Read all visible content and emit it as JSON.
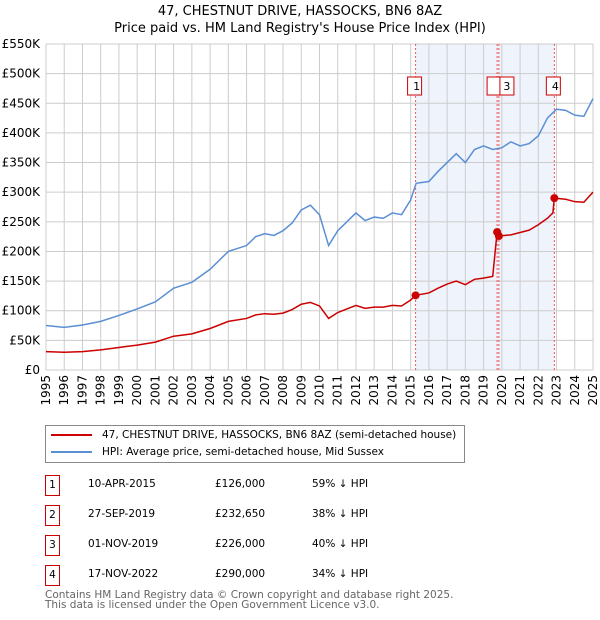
{
  "title": "47, CHESTNUT DRIVE, HASSOCKS, BN6 8AZ",
  "subtitle": "Price paid vs. HM Land Registry's House Price Index (HPI)",
  "chart_data": {
    "type": "line",
    "title": "47, CHESTNUT DRIVE, HASSOCKS, BN6 8AZ — Price paid vs. HM Land Registry's House Price Index (HPI)",
    "xlim": [
      1995,
      2025
    ],
    "ylim": [
      0,
      550000
    ],
    "x_ticks": [
      "1995",
      "1996",
      "1997",
      "1998",
      "1999",
      "2000",
      "2001",
      "2002",
      "2003",
      "2004",
      "2005",
      "2006",
      "2007",
      "2008",
      "2009",
      "2010",
      "2011",
      "2012",
      "2013",
      "2014",
      "2015",
      "2016",
      "2017",
      "2018",
      "2019",
      "2020",
      "2021",
      "2022",
      "2023",
      "2024",
      "2025"
    ],
    "y_ticks": [
      {
        "v": 0,
        "l": "£0"
      },
      {
        "v": 50000,
        "l": "£50K"
      },
      {
        "v": 100000,
        "l": "£100K"
      },
      {
        "v": 150000,
        "l": "£150K"
      },
      {
        "v": 200000,
        "l": "£200K"
      },
      {
        "v": 250000,
        "l": "£250K"
      },
      {
        "v": 300000,
        "l": "£300K"
      },
      {
        "v": 350000,
        "l": "£350K"
      },
      {
        "v": 400000,
        "l": "£400K"
      },
      {
        "v": 450000,
        "l": "£450K"
      },
      {
        "v": 500000,
        "l": "£500K"
      },
      {
        "v": 550000,
        "l": "£550K"
      }
    ],
    "grid": true,
    "shaded_range": [
      2015.27,
      2022.88
    ],
    "series": [
      {
        "name": "HPI: Average price, semi-detached house, Mid Sussex",
        "color": "#5b8fd4",
        "x": [
          1995,
          1996,
          1997,
          1998,
          1999,
          2000,
          2001,
          2002,
          2003,
          2004,
          2005,
          2006,
          2006.5,
          2007,
          2007.5,
          2008,
          2008.5,
          2009,
          2009.5,
          2010,
          2010.5,
          2011,
          2011.5,
          2012,
          2012.5,
          2013,
          2013.5,
          2014,
          2014.5,
          2015,
          2015.3,
          2016,
          2016.5,
          2017,
          2017.5,
          2018,
          2018.5,
          2019,
          2019.5,
          2020,
          2020.5,
          2021,
          2021.5,
          2022,
          2022.5,
          2023,
          2023.5,
          2024,
          2024.5,
          2025
        ],
        "y": [
          75000,
          72000,
          76000,
          82000,
          92000,
          103000,
          115000,
          138000,
          148000,
          170000,
          200000,
          210000,
          225000,
          230000,
          227000,
          235000,
          248000,
          270000,
          278000,
          262000,
          210000,
          235000,
          250000,
          265000,
          252000,
          258000,
          256000,
          265000,
          262000,
          287000,
          315000,
          318000,
          335000,
          350000,
          365000,
          350000,
          372000,
          378000,
          372000,
          375000,
          385000,
          378000,
          382000,
          395000,
          425000,
          440000,
          438000,
          430000,
          428000,
          458000
        ]
      },
      {
        "name": "47, CHESTNUT DRIVE, HASSOCKS, BN6 8AZ (semi-detached house)",
        "color": "#cc0000",
        "x": [
          1995,
          1996,
          1997,
          1998,
          1999,
          2000,
          2001,
          2002,
          2003,
          2004,
          2005,
          2006,
          2006.5,
          2007,
          2007.5,
          2008,
          2008.5,
          2009,
          2009.5,
          2010,
          2010.5,
          2011,
          2011.5,
          2012,
          2012.5,
          2013,
          2013.5,
          2014,
          2014.5,
          2015,
          2015.27,
          2016,
          2016.5,
          2017,
          2017.5,
          2018,
          2018.5,
          2019,
          2019.5,
          2019.74,
          2019.84,
          2020.5,
          2021,
          2021.5,
          2022,
          2022.5,
          2022.8,
          2022.88,
          2023.5,
          2024,
          2024.5,
          2025
        ],
        "y": [
          31000,
          30000,
          31000,
          34000,
          38000,
          42000,
          47000,
          57000,
          61000,
          70000,
          82000,
          87000,
          93000,
          95000,
          94000,
          96000,
          102000,
          111000,
          114000,
          108000,
          87000,
          97000,
          103000,
          109000,
          104000,
          106000,
          106000,
          109000,
          108000,
          118000,
          126000,
          130000,
          138000,
          145000,
          150000,
          144000,
          153000,
          155000,
          158000,
          232650,
          226000,
          228000,
          232000,
          236000,
          245000,
          256000,
          265000,
          290000,
          288000,
          284000,
          283000,
          300000
        ]
      }
    ],
    "sales": [
      {
        "label": "1",
        "date": "10-APR-2015",
        "x": 2015.27,
        "price": "£126,000",
        "value": 126000,
        "hpi": "59% ↓ HPI"
      },
      {
        "label": "2",
        "date": "27-SEP-2019",
        "x": 2019.74,
        "price": "£232,650",
        "value": 232650,
        "hpi": "38% ↓ HPI"
      },
      {
        "label": "3",
        "date": "01-NOV-2019",
        "x": 2019.84,
        "price": "£226,000",
        "value": 226000,
        "hpi": "40% ↓ HPI"
      },
      {
        "label": "4",
        "date": "17-NOV-2022",
        "x": 2022.88,
        "price": "£290,000",
        "value": 290000,
        "hpi": "34% ↓ HPI"
      }
    ]
  },
  "legend": {
    "property": "47, CHESTNUT DRIVE, HASSOCKS, BN6 8AZ (semi-detached house)",
    "hpi": "HPI: Average price, semi-detached house, Mid Sussex"
  },
  "footer": {
    "line1": "Contains HM Land Registry data © Crown copyright and database right 2025.",
    "line2": "This data is licensed under the Open Government Licence v3.0."
  }
}
